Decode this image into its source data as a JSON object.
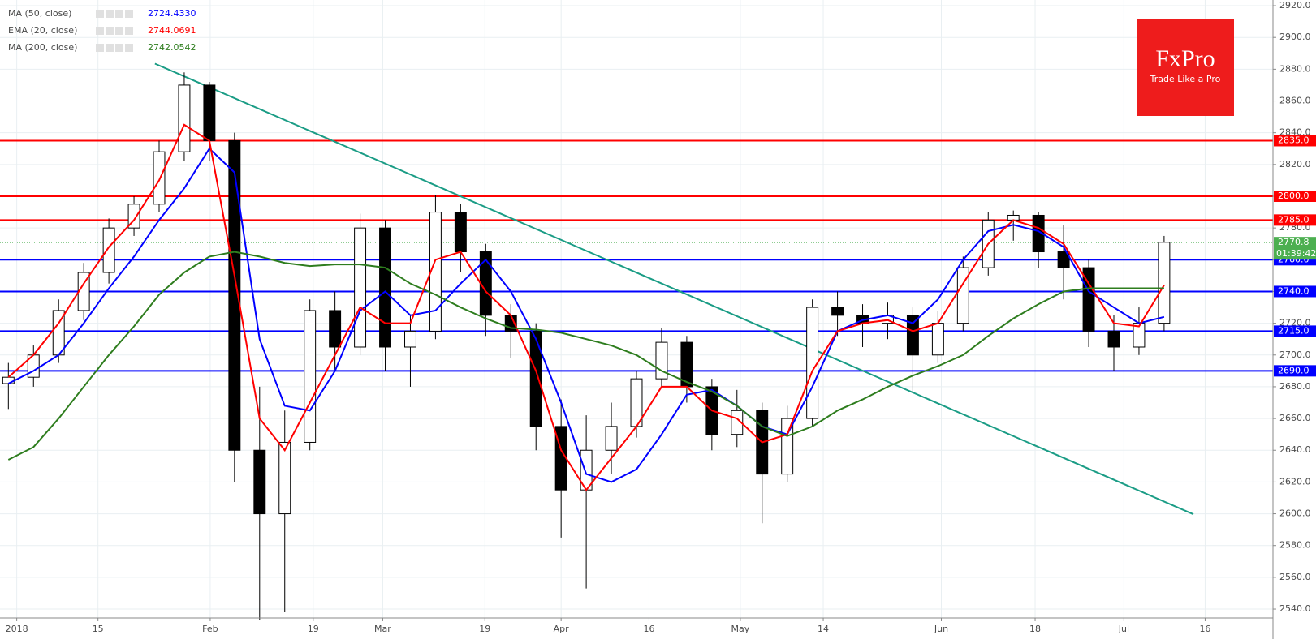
{
  "chart_data": {
    "type": "candlestick",
    "x": [
      1,
      4,
      7,
      10,
      13,
      16,
      19,
      22,
      25,
      28,
      31,
      34,
      37,
      40,
      43,
      46,
      49,
      52,
      55,
      58,
      61,
      64,
      67,
      70,
      73,
      76,
      79,
      82,
      85,
      88,
      91,
      94,
      97,
      100,
      103,
      106,
      109,
      112,
      115,
      118,
      121,
      124,
      127,
      130,
      133,
      136,
      139
    ],
    "open": [
      2682,
      2686,
      2700,
      2728,
      2752,
      2780,
      2795,
      2828,
      2870,
      2835,
      2640,
      2600,
      2645,
      2728,
      2705,
      2780,
      2705,
      2715,
      2790,
      2765,
      2725,
      2715,
      2655,
      2615,
      2640,
      2655,
      2685,
      2708,
      2680,
      2650,
      2665,
      2625,
      2660,
      2730,
      2725,
      2720,
      2725,
      2700,
      2720,
      2755,
      2785,
      2788,
      2765,
      2755,
      2715,
      2705,
      2720
    ],
    "high": [
      2695,
      2706,
      2735,
      2758,
      2786,
      2800,
      2835,
      2878,
      2872,
      2840,
      2680,
      2665,
      2735,
      2740,
      2789,
      2785,
      2725,
      2801,
      2795,
      2770,
      2732,
      2720,
      2672,
      2662,
      2670,
      2690,
      2717,
      2712,
      2685,
      2678,
      2670,
      2668,
      2735,
      2740,
      2732,
      2733,
      2730,
      2728,
      2762,
      2790,
      2791,
      2790,
      2782,
      2760,
      2725,
      2730,
      2775
    ],
    "low": [
      2666,
      2680,
      2695,
      2722,
      2745,
      2775,
      2790,
      2822,
      2822,
      2620,
      2533,
      2538,
      2640,
      2690,
      2700,
      2690,
      2680,
      2710,
      2752,
      2712,
      2698,
      2640,
      2585,
      2553,
      2625,
      2648,
      2680,
      2670,
      2640,
      2642,
      2594,
      2620,
      2655,
      2712,
      2705,
      2710,
      2676,
      2695,
      2715,
      2750,
      2772,
      2755,
      2735,
      2705,
      2690,
      2700,
      2715
    ],
    "close": [
      2686,
      2700,
      2728,
      2752,
      2780,
      2795,
      2828,
      2870,
      2835,
      2640,
      2600,
      2645,
      2728,
      2705,
      2780,
      2705,
      2715,
      2790,
      2765,
      2725,
      2715,
      2655,
      2615,
      2640,
      2655,
      2685,
      2708,
      2680,
      2650,
      2665,
      2625,
      2660,
      2730,
      2725,
      2720,
      2725,
      2700,
      2720,
      2755,
      2785,
      2788,
      2765,
      2755,
      2715,
      2705,
      2720,
      2771
    ],
    "up_fill": "#ffffff",
    "down_fill": "#000000",
    "candle_color": "#000000",
    "xlim": [
      0,
      152
    ],
    "ylim": [
      2534.4,
      2923.6
    ],
    "grid": true,
    "legend_position": "top-left",
    "yticks": [
      {
        "value": 2540,
        "label": "2540.0"
      },
      {
        "value": 2560,
        "label": "2560.0"
      },
      {
        "value": 2580,
        "label": "2580.0"
      },
      {
        "value": 2600,
        "label": "2600.0"
      },
      {
        "value": 2620,
        "label": "2620.0"
      },
      {
        "value": 2640,
        "label": "2640.0"
      },
      {
        "value": 2660,
        "label": "2660.0"
      },
      {
        "value": 2680,
        "label": "2680.0"
      },
      {
        "value": 2700,
        "label": "2700.0"
      },
      {
        "value": 2720,
        "label": "2720.0"
      },
      {
        "value": 2740,
        "label": "2740.0"
      },
      {
        "value": 2760,
        "label": "2760.0"
      },
      {
        "value": 2780,
        "label": "2780.0"
      },
      {
        "value": 2800,
        "label": "2800.0"
      },
      {
        "value": 2820,
        "label": "2820.0"
      },
      {
        "value": 2840,
        "label": "2840.0"
      },
      {
        "value": 2860,
        "label": "2860.0"
      },
      {
        "value": 2880,
        "label": "2880.0"
      },
      {
        "value": 2900,
        "label": "2900.0"
      },
      {
        "value": 2920,
        "label": "2920.0"
      }
    ],
    "xticks": [
      {
        "value": 2,
        "label": "2018"
      },
      {
        "value": 11.7,
        "label": "15"
      },
      {
        "value": 25.1,
        "label": "Feb"
      },
      {
        "value": 37.4,
        "label": "19"
      },
      {
        "value": 45.7,
        "label": "Mar"
      },
      {
        "value": 57.9,
        "label": "19"
      },
      {
        "value": 67,
        "label": "Apr"
      },
      {
        "value": 77.5,
        "label": "16"
      },
      {
        "value": 88.4,
        "label": "May"
      },
      {
        "value": 98.3,
        "label": "14"
      },
      {
        "value": 112.4,
        "label": "Jun"
      },
      {
        "value": 123.6,
        "label": "18"
      },
      {
        "value": 134.2,
        "label": "Jul"
      },
      {
        "value": 143.9,
        "label": "16"
      }
    ],
    "series": [
      {
        "name": "MA (50, close)",
        "color": "#0000ff",
        "legend_value": {
          "value": 2724.433,
          "label": "2724.4330"
        },
        "values": [
          2682,
          2690,
          2700,
          2720,
          2742,
          2762,
          2785,
          2805,
          2830,
          2815,
          2710,
          2668,
          2665,
          2690,
          2728,
          2740,
          2725,
          2728,
          2745,
          2760,
          2740,
          2710,
          2670,
          2625,
          2620,
          2628,
          2650,
          2675,
          2678,
          2668,
          2655,
          2650,
          2680,
          2715,
          2722,
          2725,
          2720,
          2735,
          2760,
          2778,
          2782,
          2778,
          2768,
          2740,
          2730,
          2720,
          2724
        ]
      },
      {
        "name": "EMA (20, close)",
        "color": "#ff0000",
        "legend_value": {
          "value": 2744.0691,
          "label": "2744.0691"
        },
        "values": [
          2686,
          2700,
          2720,
          2745,
          2768,
          2785,
          2810,
          2845,
          2835,
          2750,
          2660,
          2640,
          2670,
          2700,
          2730,
          2720,
          2720,
          2760,
          2765,
          2740,
          2725,
          2690,
          2640,
          2615,
          2635,
          2655,
          2680,
          2680,
          2665,
          2660,
          2645,
          2650,
          2690,
          2715,
          2720,
          2722,
          2715,
          2720,
          2745,
          2770,
          2785,
          2780,
          2770,
          2745,
          2720,
          2718,
          2744
        ]
      },
      {
        "name": "MA (200, close)",
        "color": "#2e7d1e",
        "legend_value": {
          "value": 2742.0542,
          "label": "2742.0542"
        },
        "values": [
          2634,
          2642,
          2660,
          2680,
          2700,
          2718,
          2738,
          2752,
          2762,
          2765,
          2762,
          2758,
          2756,
          2757,
          2757,
          2755,
          2745,
          2738,
          2730,
          2723,
          2717,
          2716,
          2714,
          2710,
          2706,
          2700,
          2690,
          2683,
          2677,
          2668,
          2655,
          2649,
          2655,
          2665,
          2672,
          2680,
          2687,
          2693,
          2700,
          2712,
          2723,
          2732,
          2740,
          2742,
          2742,
          2742,
          2742
        ]
      }
    ],
    "levels": [
      {
        "value": 2835,
        "label": "2835.0",
        "color": "#ff0000"
      },
      {
        "value": 2800,
        "label": "2800.0",
        "color": "#ff0000"
      },
      {
        "value": 2785,
        "label": "2785.0",
        "color": "#ff0000"
      },
      {
        "value": 2760,
        "label": "2760.0",
        "color": "#0000ff"
      },
      {
        "value": 2740,
        "label": "2740.0",
        "color": "#0000ff"
      },
      {
        "value": 2715,
        "label": "2715.0",
        "color": "#0000ff"
      },
      {
        "value": 2690,
        "label": "2690.0",
        "color": "#0000ff"
      }
    ],
    "last_price": {
      "value": 2770.8,
      "label": "2770.8",
      "color": "#4caf50"
    },
    "countdown": "01:39:42",
    "trendline": {
      "x": [
        18.5,
        142.5
      ],
      "y": [
        2883.5,
        2599.7
      ],
      "color": "#1a9c85"
    }
  },
  "logo": {
    "title": "FxPro",
    "subtitle": "Trade Like a Pro"
  }
}
